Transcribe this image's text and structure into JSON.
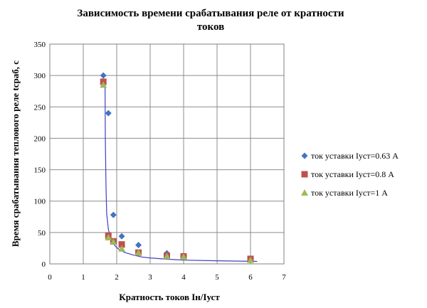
{
  "chart_data": {
    "type": "scatter",
    "title_lines": [
      "Зависимость времени срабатывания реле от кратности",
      "токов"
    ],
    "xlabel": "Кратность токов Iн/Iуст",
    "ylabel": "Время срабатывания теплового реле tсраб, с",
    "xlim": [
      0,
      7
    ],
    "ylim": [
      0,
      350
    ],
    "xticks": [
      0,
      1,
      2,
      3,
      4,
      5,
      6,
      7
    ],
    "yticks": [
      0,
      50,
      100,
      150,
      200,
      250,
      300,
      350
    ],
    "grid": true,
    "legend_position": "right",
    "series": [
      {
        "name": "ток уставки Iуст=0.63 А",
        "marker": "diamond",
        "color": "#4472C4",
        "x": [
          1.6,
          1.75,
          1.9,
          2.15,
          2.65,
          3.5,
          4.0,
          6.0
        ],
        "y": [
          300,
          240,
          78,
          44,
          30,
          17,
          13,
          8
        ]
      },
      {
        "name": "ток уставки Iуст=0.8 А",
        "marker": "square",
        "color": "#C0504D",
        "x": [
          1.6,
          1.75,
          1.9,
          2.15,
          2.65,
          3.5,
          4.0,
          6.0
        ],
        "y": [
          290,
          45,
          36,
          31,
          18,
          13,
          12,
          8
        ]
      },
      {
        "name": "ток уставки Iуст=1 А",
        "marker": "triangle",
        "color": "#9BBB59",
        "x": [
          1.6,
          1.75,
          1.9,
          2.15,
          2.65,
          3.5,
          4.0,
          6.0
        ],
        "y": [
          285,
          42,
          35,
          24,
          18,
          12,
          11,
          6
        ]
      }
    ],
    "trendline": {
      "color": "#4040C0",
      "x": [
        1.65,
        1.66,
        1.68,
        1.7,
        1.75,
        1.8,
        1.85,
        1.9,
        2.0,
        2.1,
        2.25,
        2.5,
        2.75,
        3.0,
        3.5,
        4.0,
        5.0,
        6.2
      ],
      "y": [
        290,
        200,
        120,
        80,
        55,
        44,
        37,
        32,
        26,
        22,
        18,
        14,
        11,
        9.5,
        7.5,
        6,
        5,
        4
      ]
    }
  }
}
